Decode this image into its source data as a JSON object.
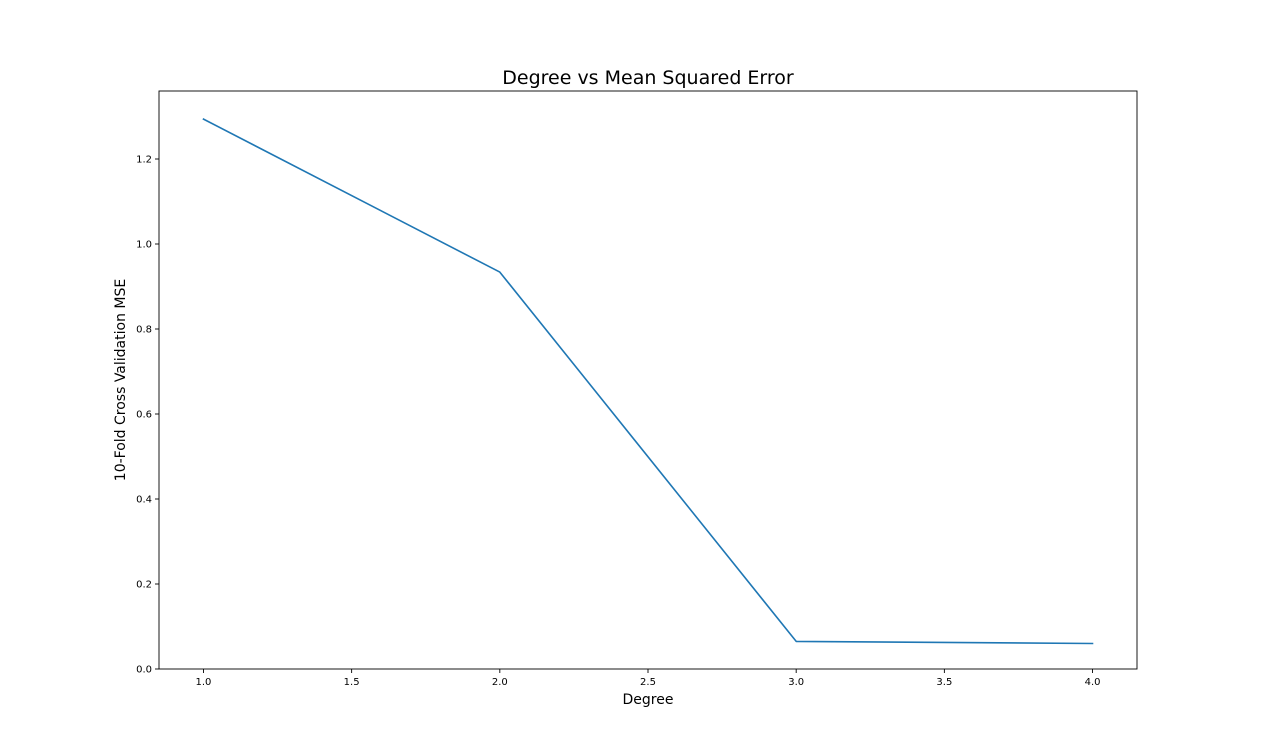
{
  "chart_data": {
    "type": "line",
    "title": "Degree vs Mean Squared Error",
    "xlabel": "Degree",
    "ylabel": "10-Fold Cross Validation MSE",
    "xlim": [
      0.85,
      4.15
    ],
    "ylim": [
      0.0,
      1.36
    ],
    "xticks": [
      1.0,
      1.5,
      2.0,
      2.5,
      3.0,
      3.5,
      4.0
    ],
    "xtick_labels": [
      "1.0",
      "1.5",
      "2.0",
      "2.5",
      "3.0",
      "3.5",
      "4.0"
    ],
    "yticks": [
      0.0,
      0.2,
      0.4,
      0.6,
      0.8,
      1.0,
      1.2
    ],
    "ytick_labels": [
      "0.0",
      "0.2",
      "0.4",
      "0.6",
      "0.8",
      "1.0",
      "1.2"
    ],
    "grid": false,
    "series": [
      {
        "color": "#1f77b4",
        "x": [
          1,
          2,
          3,
          4
        ],
        "y": [
          1.294,
          0.934,
          0.065,
          0.06
        ]
      }
    ]
  }
}
